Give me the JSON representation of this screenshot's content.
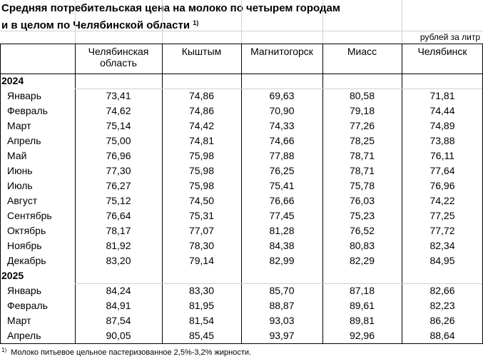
{
  "title": {
    "line1": "Средняя потребительская цена на молоко по четырем городам",
    "line2": "и в целом по Челябинской области",
    "footnote_mark": "1)"
  },
  "unit": "рублей за литр",
  "columns": [
    "Челябинская область",
    "Кыштым",
    "Магнитогорск",
    "Миасс",
    "Челябинск"
  ],
  "sections": [
    {
      "year": "2024",
      "rows": [
        {
          "month": "Январь",
          "values": [
            "73,41",
            "74,86",
            "69,63",
            "80,58",
            "71,81"
          ]
        },
        {
          "month": "Февраль",
          "values": [
            "74,62",
            "74,86",
            "70,90",
            "79,18",
            "74,44"
          ]
        },
        {
          "month": "Март",
          "values": [
            "75,14",
            "74,42",
            "74,33",
            "77,26",
            "74,89"
          ]
        },
        {
          "month": "Апрель",
          "values": [
            "75,00",
            "74,81",
            "74,66",
            "78,25",
            "73,88"
          ]
        },
        {
          "month": "Май",
          "values": [
            "76,96",
            "75,98",
            "77,88",
            "78,71",
            "76,11"
          ]
        },
        {
          "month": "Июнь",
          "values": [
            "77,30",
            "75,98",
            "76,25",
            "78,71",
            "77,64"
          ]
        },
        {
          "month": "Июль",
          "values": [
            "76,27",
            "75,98",
            "75,41",
            "75,78",
            "76,96"
          ]
        },
        {
          "month": "Август",
          "values": [
            "75,12",
            "74,50",
            "76,66",
            "76,03",
            "74,22"
          ]
        },
        {
          "month": "Сентябрь",
          "values": [
            "76,64",
            "75,31",
            "77,45",
            "75,23",
            "77,25"
          ]
        },
        {
          "month": "Октябрь",
          "values": [
            "78,17",
            "77,07",
            "81,28",
            "76,52",
            "77,72"
          ]
        },
        {
          "month": "Ноябрь",
          "values": [
            "81,92",
            "78,30",
            "84,38",
            "80,83",
            "82,34"
          ]
        },
        {
          "month": "Декабрь",
          "values": [
            "83,20",
            "79,14",
            "82,99",
            "82,29",
            "84,95"
          ]
        }
      ]
    },
    {
      "year": "2025",
      "rows": [
        {
          "month": "Январь",
          "values": [
            "84,24",
            "83,30",
            "85,70",
            "87,18",
            "82,66"
          ]
        },
        {
          "month": "Февраль",
          "values": [
            "84,91",
            "81,95",
            "88,87",
            "89,61",
            "82,23"
          ]
        },
        {
          "month": "Март",
          "values": [
            "87,54",
            "81,54",
            "93,03",
            "89,81",
            "86,26"
          ]
        },
        {
          "month": "Апрель",
          "values": [
            "90,05",
            "85,45",
            "93,97",
            "92,96",
            "88,64"
          ]
        }
      ]
    }
  ],
  "footnote": {
    "mark": "1)",
    "text": "Молоко питьевое цельное пастеризованное 2,5%-3,2% жирности."
  }
}
